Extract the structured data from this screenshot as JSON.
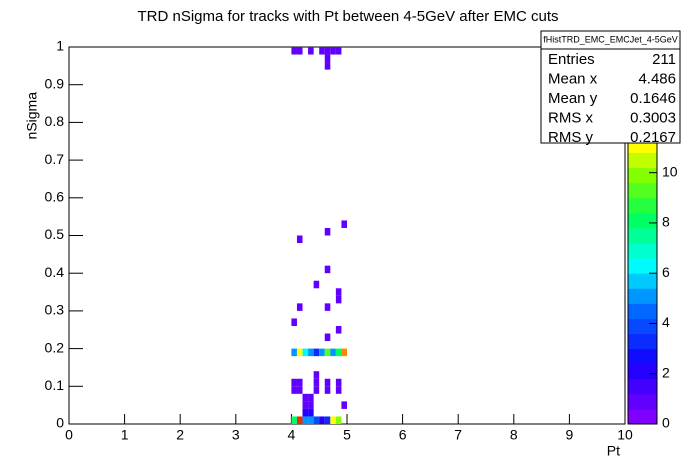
{
  "chart_data": {
    "type": "heatmap",
    "title": "TRD nSigma for tracks with Pt between 4-5GeV after EMC cuts",
    "x_label": "Pt",
    "y_label": "nSigma",
    "xlim": [
      0,
      10
    ],
    "xticks": [
      0,
      1,
      2,
      3,
      4,
      5,
      6,
      7,
      8,
      9,
      10
    ],
    "ylim": [
      0,
      1
    ],
    "yticks": [
      0,
      0.1,
      0.2,
      0.3,
      0.4,
      0.5,
      0.6,
      0.7,
      0.8,
      0.9,
      1
    ],
    "zlim": [
      0,
      15
    ],
    "zticks": [
      0,
      2,
      4,
      6,
      8,
      10
    ],
    "cells": {
      "x": [
        4.05,
        4.15,
        4.35,
        4.55,
        4.65,
        4.75,
        4.85,
        4.65,
        4.65,
        4.95,
        4.65,
        4.15,
        4.65,
        4.45,
        4.85,
        4.85,
        4.15,
        4.65,
        4.05,
        4.85,
        4.65,
        4.05,
        4.15,
        4.25,
        4.35,
        4.45,
        4.55,
        4.65,
        4.75,
        4.85,
        4.95,
        4.45,
        4.05,
        4.15,
        4.45,
        4.65,
        4.85,
        4.05,
        4.15,
        4.45,
        4.65,
        4.85,
        4.25,
        4.35,
        4.25,
        4.35,
        4.95,
        4.25,
        4.35,
        4.05,
        4.15,
        4.25,
        4.35,
        4.45,
        4.55,
        4.65,
        4.75,
        4.85
      ],
      "y": [
        0.99,
        0.99,
        0.99,
        0.99,
        0.99,
        0.99,
        0.99,
        0.97,
        0.95,
        0.53,
        0.51,
        0.49,
        0.41,
        0.37,
        0.35,
        0.33,
        0.31,
        0.31,
        0.27,
        0.25,
        0.23,
        0.19,
        0.19,
        0.19,
        0.19,
        0.19,
        0.19,
        0.19,
        0.19,
        0.19,
        0.19,
        0.13,
        0.11,
        0.11,
        0.11,
        0.11,
        0.11,
        0.09,
        0.09,
        0.09,
        0.09,
        0.09,
        0.07,
        0.07,
        0.05,
        0.05,
        0.05,
        0.03,
        0.03,
        0.01,
        0.01,
        0.01,
        0.01,
        0.01,
        0.01,
        0.01,
        0.01,
        0.01
      ],
      "values": [
        1,
        1,
        1,
        1,
        1,
        1,
        1,
        1,
        1,
        1,
        1,
        1,
        1,
        1,
        1,
        1,
        1,
        1,
        1,
        1,
        1,
        5,
        11,
        6,
        5,
        3,
        5,
        9,
        5,
        8,
        13,
        1,
        1,
        1,
        1,
        1,
        1,
        1,
        1,
        1,
        1,
        1,
        1,
        1,
        1,
        1,
        1,
        2,
        2,
        8,
        14,
        5,
        5,
        4,
        2,
        3,
        11,
        10
      ]
    },
    "stats": {
      "title": "fHistTRD_EMC_EMCJet_4-5GeV",
      "rows": [
        [
          "Entries",
          211
        ],
        [
          "Mean x",
          4.486
        ],
        [
          "Mean y",
          0.1646
        ],
        [
          "RMS x",
          0.3003
        ],
        [
          "RMS y",
          0.2167
        ]
      ]
    }
  }
}
